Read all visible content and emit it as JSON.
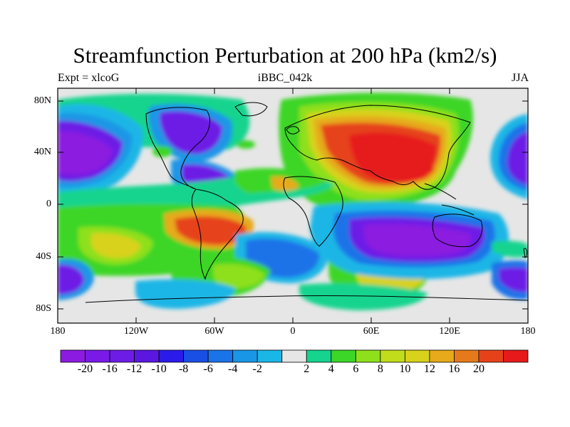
{
  "map": {
    "title": "Streamfunction Perturbation at 200 hPa (km2/s)",
    "subtitle_left": "Expt = xlcoG",
    "subtitle_center": "iBBC_042k",
    "subtitle_right": "JJA",
    "projection": "cylindrical equidistant, global",
    "lat_labels": [
      "80N",
      "40N",
      "0",
      "40S",
      "80S"
    ],
    "lon_labels": [
      "180",
      "120W",
      "60W",
      "0",
      "60E",
      "120E",
      "180"
    ],
    "colorbar": {
      "colors": [
        "#8b1be0",
        "#7a1ae6",
        "#6d1ce6",
        "#5a17e0",
        "#2a1bea",
        "#1a4fe6",
        "#1a73e8",
        "#1a96e6",
        "#1ab6e6",
        "#e6e6e6",
        "#14d48e",
        "#3cd628",
        "#8ee01a",
        "#c0dc1a",
        "#d8d21a",
        "#e6aa1a",
        "#e67a1a",
        "#e6421a",
        "#e61a1a"
      ],
      "labels": [
        "-20",
        "-16",
        "-12",
        "-10",
        "-8",
        "-6",
        "-4",
        "-2",
        "2",
        "4",
        "6",
        "8",
        "10",
        "12",
        "16",
        "20"
      ]
    },
    "features": [
      {
        "name": "eurasia-positive-max",
        "level": 20,
        "lon": 85,
        "lat": 35
      },
      {
        "name": "north-pacific-negative",
        "level": -20,
        "lon": -170,
        "lat": 35
      },
      {
        "name": "west-pacific-negative",
        "level": -16,
        "lon": 165,
        "lat": 30
      },
      {
        "name": "north-america-negative",
        "level": -16,
        "lon": -105,
        "lat": 60
      },
      {
        "name": "gulf-negative",
        "level": -16,
        "lon": -85,
        "lat": 25
      },
      {
        "name": "south-america-positive",
        "level": 16,
        "lon": -65,
        "lat": -20
      },
      {
        "name": "australia-negative",
        "level": -20,
        "lon": 105,
        "lat": -35
      },
      {
        "name": "south-pacific-negative",
        "level": -16,
        "lon": 170,
        "lat": -45
      },
      {
        "name": "south-pacific-positive",
        "level": 10,
        "lon": -140,
        "lat": -40
      },
      {
        "name": "south-atlantic-negative",
        "level": -12,
        "lon": 0,
        "lat": -40
      },
      {
        "name": "southern-ocean-positive",
        "level": 8,
        "lon": 50,
        "lat": -55
      },
      {
        "name": "southwest-pacific-negative",
        "level": -12,
        "lon": -175,
        "lat": -55
      }
    ]
  }
}
